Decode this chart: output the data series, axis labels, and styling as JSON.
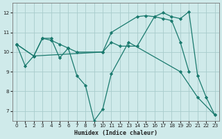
{
  "xlabel": "Humidex (Indice chaleur)",
  "bg_color": "#cfeaea",
  "line_color": "#1a7a6e",
  "grid_color": "#a8cccc",
  "xlim": [
    -0.5,
    23.5
  ],
  "ylim": [
    6.5,
    12.5
  ],
  "xticks": [
    0,
    1,
    2,
    3,
    4,
    5,
    6,
    7,
    8,
    9,
    10,
    11,
    12,
    13,
    14,
    15,
    16,
    17,
    18,
    19,
    20,
    21,
    22,
    23
  ],
  "yticks": [
    7,
    8,
    9,
    10,
    11,
    12
  ],
  "series": [
    {
      "x": [
        0,
        1,
        2,
        3,
        4,
        5,
        6,
        7,
        8,
        9,
        10,
        11,
        13,
        19,
        21,
        23
      ],
      "y": [
        10.4,
        9.3,
        9.8,
        10.7,
        10.7,
        9.7,
        10.2,
        8.8,
        8.3,
        6.5,
        7.1,
        8.9,
        10.5,
        9.0,
        7.7,
        6.8
      ]
    },
    {
      "x": [
        0,
        2,
        3,
        4,
        5,
        6,
        7,
        10,
        11,
        12,
        13,
        14,
        16,
        17,
        18,
        19,
        20
      ],
      "y": [
        10.4,
        9.8,
        10.7,
        10.6,
        10.4,
        10.2,
        10.0,
        10.0,
        10.5,
        10.3,
        10.3,
        10.3,
        11.8,
        11.7,
        11.6,
        10.5,
        9.0
      ]
    },
    {
      "x": [
        0,
        2,
        10,
        11,
        14,
        15,
        16,
        17,
        18,
        19,
        20,
        21,
        22,
        23
      ],
      "y": [
        10.4,
        9.8,
        10.0,
        11.0,
        11.8,
        11.85,
        11.8,
        12.0,
        11.8,
        11.7,
        12.05,
        8.8,
        7.7,
        6.8
      ]
    }
  ]
}
